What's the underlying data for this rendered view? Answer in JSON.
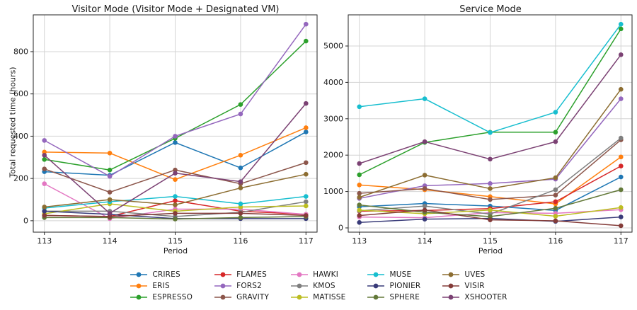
{
  "figure": {
    "background": "#ffffff",
    "grid_color": "#d4d4d4",
    "spine_color": "#262626",
    "text_color": "#1a1a1a"
  },
  "chart_data": [
    {
      "type": "line",
      "title": "Visitor Mode (Visitor Mode + Designated VM)",
      "xlabel": "Period",
      "ylabel": "Total requested time (hours)",
      "x": [
        113,
        114,
        115,
        116,
        117
      ],
      "xticks": [
        113,
        114,
        115,
        116,
        117
      ],
      "yticks": [
        0,
        200,
        400,
        600,
        800
      ],
      "xlim": [
        112.83,
        117.17
      ],
      "ylim": [
        -54,
        974
      ],
      "grid": true,
      "legend_position": "bottom-center",
      "series": [
        {
          "name": "CRIRES",
          "color": "#1f77b4",
          "values": [
            232,
            215,
            370,
            250,
            420
          ]
        },
        {
          "name": "ERIS",
          "color": "#ff7f0e",
          "values": [
            325,
            320,
            195,
            310,
            440
          ]
        },
        {
          "name": "ESPRESSO",
          "color": "#2ca02c",
          "values": [
            290,
            240,
            390,
            550,
            850
          ]
        },
        {
          "name": "FLAMES",
          "color": "#d62728",
          "values": [
            25,
            20,
            95,
            45,
            30
          ]
        },
        {
          "name": "FORS2",
          "color": "#9467bd",
          "values": [
            380,
            210,
            400,
            505,
            930
          ]
        },
        {
          "name": "GRAVITY",
          "color": "#8c564b",
          "values": [
            245,
            135,
            240,
            175,
            275
          ]
        },
        {
          "name": "HAWKI",
          "color": "#e377c2",
          "values": [
            175,
            10,
            55,
            55,
            30
          ]
        },
        {
          "name": "KMOS",
          "color": "#7f7f7f",
          "values": [
            45,
            45,
            20,
            40,
            90
          ]
        },
        {
          "name": "MATISSE",
          "color": "#bcbd22",
          "values": [
            33,
            80,
            45,
            65,
            70
          ]
        },
        {
          "name": "MUSE",
          "color": "#17becf",
          "values": [
            60,
            90,
            115,
            80,
            115
          ]
        },
        {
          "name": "PIONIER",
          "color": "#393b79",
          "values": [
            45,
            30,
            10,
            10,
            10
          ]
        },
        {
          "name": "SPHERE",
          "color": "#637939",
          "values": [
            15,
            15,
            8,
            15,
            20
          ]
        },
        {
          "name": "UVES",
          "color": "#8c6d31",
          "values": [
            65,
            100,
            75,
            155,
            220
          ]
        },
        {
          "name": "VISIR",
          "color": "#843c39",
          "values": [
            25,
            20,
            35,
            35,
            25
          ]
        },
        {
          "name": "XSHOOTER",
          "color": "#7b4173",
          "values": [
            310,
            35,
            225,
            185,
            555
          ]
        }
      ]
    },
    {
      "type": "line",
      "title": "Service Mode",
      "xlabel": "Period",
      "ylabel": "",
      "x": [
        113,
        114,
        115,
        116,
        117
      ],
      "xticks": [
        113,
        114,
        115,
        116,
        117
      ],
      "yticks": [
        0,
        1000,
        2000,
        3000,
        4000,
        5000
      ],
      "xlim": [
        112.83,
        117.17
      ],
      "ylim": [
        -117,
        5856
      ],
      "grid": true,
      "legend_position": "bottom-center",
      "series": [
        {
          "name": "CRIRES",
          "color": "#1f77b4",
          "values": [
            580,
            670,
            600,
            480,
            1400
          ]
        },
        {
          "name": "ERIS",
          "color": "#ff7f0e",
          "values": [
            1180,
            1050,
            860,
            660,
            1950
          ]
        },
        {
          "name": "ESPRESSO",
          "color": "#2ca02c",
          "values": [
            1460,
            2350,
            2630,
            2630,
            5470
          ]
        },
        {
          "name": "FLAMES",
          "color": "#d62728",
          "values": [
            460,
            480,
            530,
            720,
            1700
          ]
        },
        {
          "name": "FORS2",
          "color": "#9467bd",
          "values": [
            810,
            1160,
            1220,
            1340,
            3550
          ]
        },
        {
          "name": "GRAVITY",
          "color": "#8c564b",
          "values": [
            950,
            1080,
            780,
            900,
            2420
          ]
        },
        {
          "name": "HAWKI",
          "color": "#e377c2",
          "values": [
            300,
            280,
            420,
            400,
            500
          ]
        },
        {
          "name": "KMOS",
          "color": "#7f7f7f",
          "values": [
            470,
            600,
            380,
            1050,
            2470
          ]
        },
        {
          "name": "MATISSE",
          "color": "#bcbd22",
          "values": [
            490,
            390,
            490,
            320,
            560
          ]
        },
        {
          "name": "MUSE",
          "color": "#17becf",
          "values": [
            3330,
            3550,
            2620,
            3180,
            5600
          ]
        },
        {
          "name": "PIONIER",
          "color": "#393b79",
          "values": [
            150,
            240,
            260,
            180,
            300
          ]
        },
        {
          "name": "SPHERE",
          "color": "#637939",
          "values": [
            630,
            430,
            310,
            540,
            1050
          ]
        },
        {
          "name": "UVES",
          "color": "#8c6d31",
          "values": [
            840,
            1450,
            1080,
            1380,
            3810
          ]
        },
        {
          "name": "VISIR",
          "color": "#843c39",
          "values": [
            340,
            490,
            220,
            195,
            60
          ]
        },
        {
          "name": "XSHOOTER",
          "color": "#7b4173",
          "values": [
            1770,
            2370,
            1890,
            2370,
            4760
          ]
        }
      ]
    }
  ],
  "legend": {
    "rows_per_column": 3,
    "labels": [
      "CRIRES",
      "ERIS",
      "ESPRESSO",
      "FLAMES",
      "FORS2",
      "GRAVITY",
      "HAWKI",
      "KMOS",
      "MATISSE",
      "MUSE",
      "PIONIER",
      "SPHERE",
      "UVES",
      "VISIR",
      "XSHOOTER"
    ]
  }
}
